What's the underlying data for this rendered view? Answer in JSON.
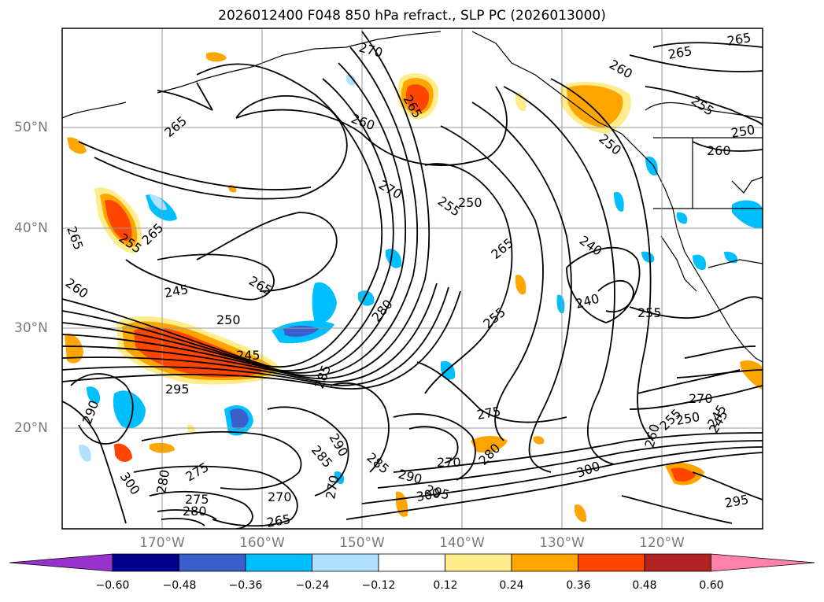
{
  "title": "2026012400 F048 850 hPa refract., SLP PC (2026013000)",
  "latitude_labels": [
    "50°N",
    "40°N",
    "30°N",
    "20°N"
  ],
  "longitude_labels": [
    "170°W",
    "160°W",
    "150°W",
    "140°W",
    "130°W",
    "120°W"
  ],
  "colorbar": {
    "tick_labels": [
      "−0.60",
      "−0.48",
      "−0.36",
      "−0.24",
      "−0.12",
      "0.12",
      "0.24",
      "0.36",
      "0.48",
      "0.60"
    ],
    "colors": [
      "#9932cc",
      "#00008b",
      "#3a5fcd",
      "#00bfff",
      "#b0e2ff",
      "#ffffff",
      "#ffec8b",
      "#ffa500",
      "#ff4500",
      "#b22222",
      "#ff82ab"
    ]
  },
  "contour_labels": [
    "270",
    "265",
    "260",
    "265",
    "255",
    "250",
    "260",
    "265",
    "260",
    "265",
    "250",
    "270",
    "255",
    "250",
    "265",
    "240",
    "255",
    "245",
    "265",
    "250",
    "260",
    "265",
    "245",
    "280",
    "255",
    "240",
    "255",
    "265",
    "295",
    "285",
    "275",
    "290",
    "270",
    "245",
    "275",
    "285",
    "290",
    "300",
    "295",
    "280",
    "275",
    "270",
    "265",
    "300",
    "295",
    "260",
    "255",
    "250",
    "245",
    "270",
    "280",
    "300",
    "290",
    "280",
    "285",
    "270"
  ],
  "palette": {
    "grid": "#999999",
    "contour": "#000000",
    "frame": "#000000"
  }
}
